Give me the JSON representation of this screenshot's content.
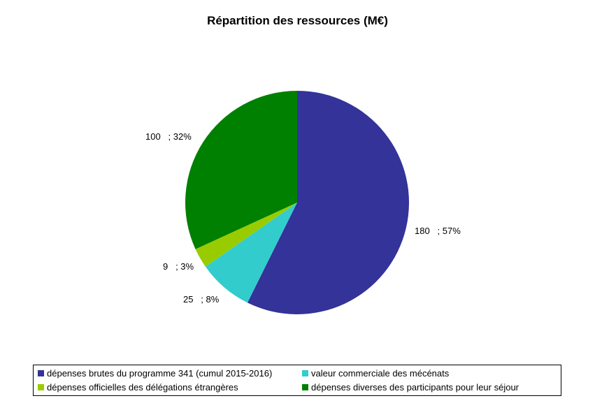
{
  "chart_data": {
    "type": "pie",
    "title": "Répartition des ressources (M€)",
    "slices": [
      {
        "name": "dépenses brutes du programme 341 (cumul 2015-2016)",
        "value": 180,
        "percent": "57%",
        "label": "180   ; 57%",
        "color": "#333399"
      },
      {
        "name": "valeur commerciale des mécénats",
        "value": 25,
        "percent": "8%",
        "label": "25   ; 8%",
        "color": "#33cccc"
      },
      {
        "name": "dépenses officielles des délégations étrangères",
        "value": 9,
        "percent": "3%",
        "label": "9   ; 3%",
        "color": "#99cc00"
      },
      {
        "name": "dépenses diverses des participants pour leur séjour",
        "value": 100,
        "percent": "32%",
        "label": "100   ; 32%",
        "color": "#008000"
      }
    ],
    "legend": {
      "position": "bottom"
    }
  }
}
